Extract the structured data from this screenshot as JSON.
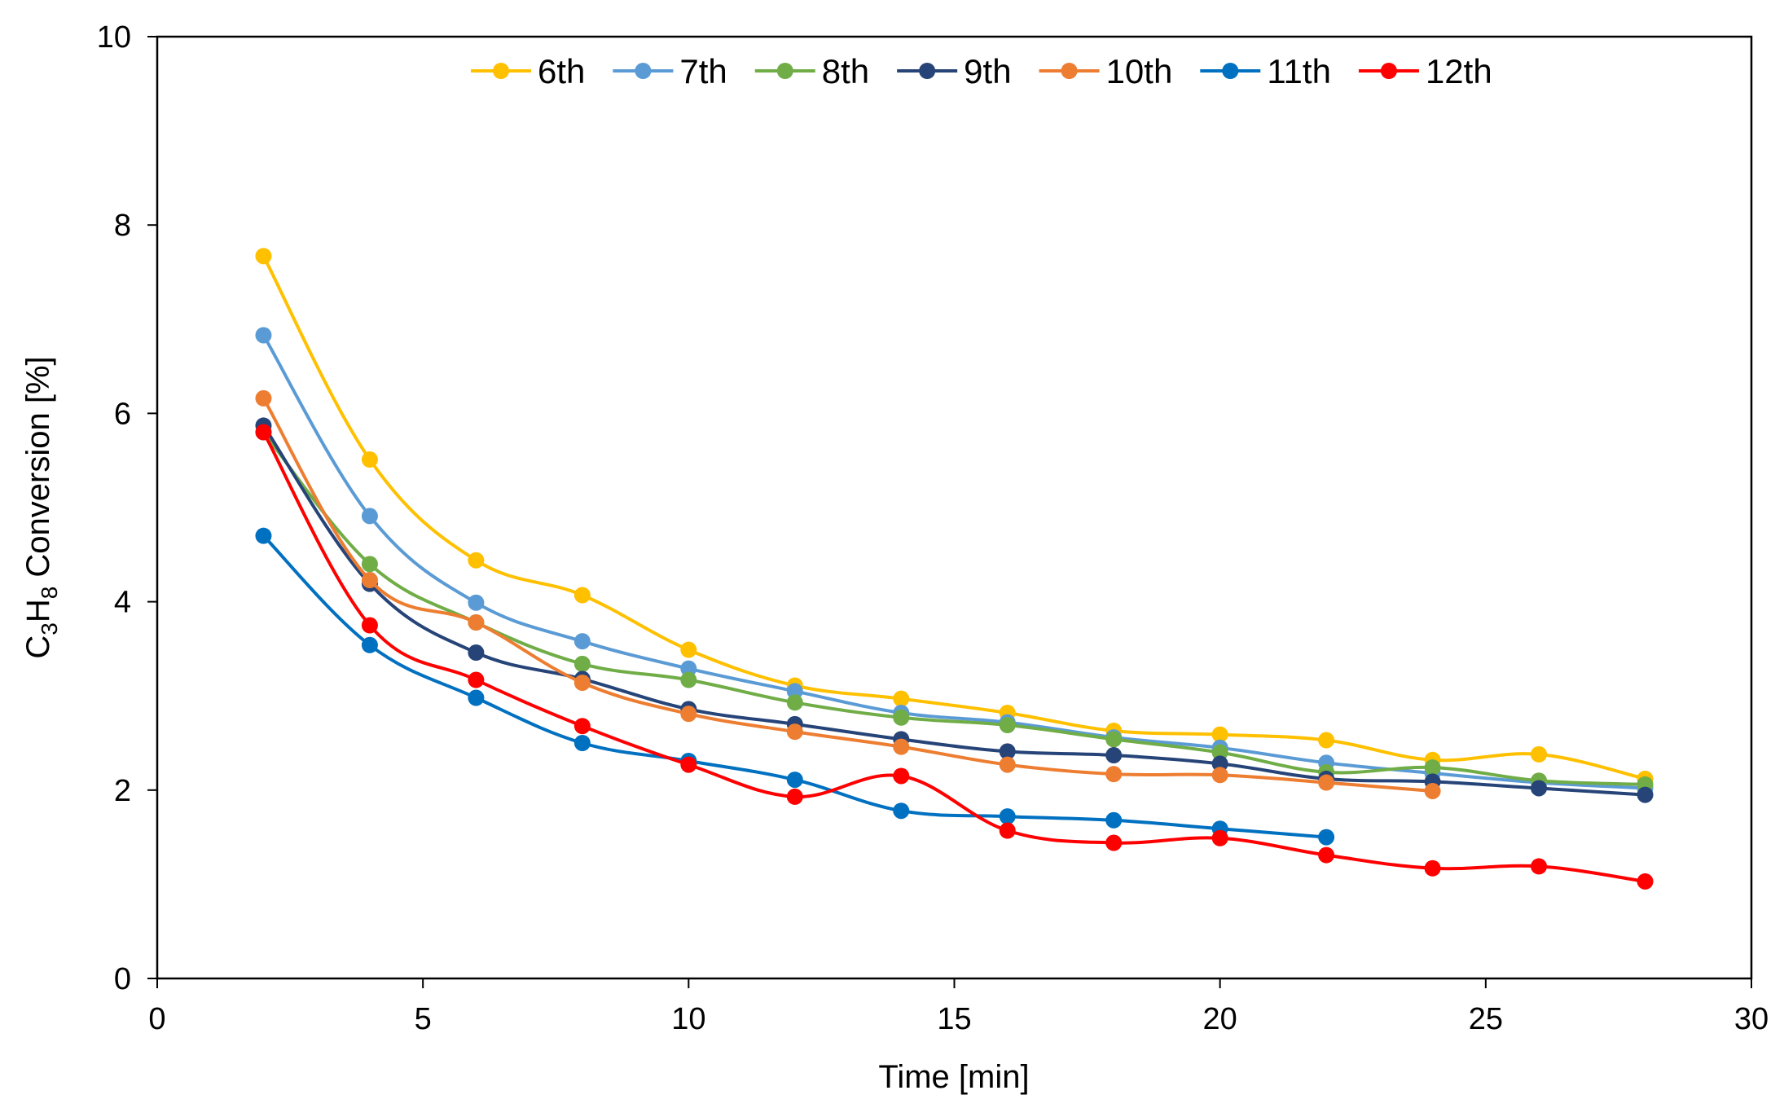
{
  "chart_data": {
    "type": "line",
    "title": "",
    "xlabel": "Time [min]",
    "ylabel_main": "C",
    "ylabel_sub1": "3",
    "ylabel_mid": "H",
    "ylabel_sub2": "8",
    "ylabel_tail": " Conversion [%]",
    "xlim": [
      0,
      30
    ],
    "ylim": [
      0,
      10
    ],
    "xticks": [
      0,
      5,
      10,
      15,
      20,
      25,
      30
    ],
    "yticks": [
      0,
      2,
      4,
      6,
      8,
      10
    ],
    "grid": false,
    "legend_position": "top",
    "series": [
      {
        "name": "6th",
        "color": "#FFC000",
        "x": [
          2,
          4,
          6,
          8,
          10,
          12,
          14,
          16,
          18,
          20,
          22,
          24,
          26,
          28
        ],
        "y": [
          7.67,
          5.51,
          4.44,
          4.07,
          3.49,
          3.11,
          2.97,
          2.82,
          2.63,
          2.59,
          2.53,
          2.32,
          2.38,
          2.12
        ]
      },
      {
        "name": "7th",
        "color": "#5B9BD5",
        "x": [
          2,
          4,
          6,
          8,
          10,
          12,
          14,
          16,
          18,
          20,
          22,
          24,
          26,
          28
        ],
        "y": [
          6.83,
          4.91,
          3.99,
          3.58,
          3.29,
          3.05,
          2.82,
          2.72,
          2.56,
          2.45,
          2.29,
          2.18,
          2.08,
          2.02
        ]
      },
      {
        "name": "8th",
        "color": "#70AD47",
        "x": [
          2,
          4,
          6,
          8,
          10,
          12,
          14,
          16,
          18,
          20,
          22,
          24,
          26,
          28
        ],
        "y": [
          5.8,
          4.4,
          3.78,
          3.34,
          3.17,
          2.93,
          2.77,
          2.69,
          2.54,
          2.4,
          2.19,
          2.24,
          2.1,
          2.06
        ]
      },
      {
        "name": "9th",
        "color": "#264478",
        "x": [
          2,
          4,
          6,
          8,
          10,
          12,
          14,
          16,
          18,
          20,
          22,
          24,
          26,
          28
        ],
        "y": [
          5.87,
          4.19,
          3.46,
          3.18,
          2.86,
          2.7,
          2.54,
          2.41,
          2.37,
          2.28,
          2.12,
          2.09,
          2.02,
          1.95
        ]
      },
      {
        "name": "10th",
        "color": "#ED7D31",
        "x": [
          2,
          4,
          6,
          8,
          10,
          12,
          14,
          16,
          18,
          20,
          22,
          24
        ],
        "y": [
          6.16,
          4.23,
          3.78,
          3.14,
          2.81,
          2.62,
          2.46,
          2.27,
          2.17,
          2.16,
          2.08,
          1.99
        ]
      },
      {
        "name": "11th",
        "color": "#0070C0",
        "x": [
          2,
          4,
          6,
          8,
          10,
          12,
          14,
          16,
          18,
          20,
          22
        ],
        "y": [
          4.7,
          3.54,
          2.98,
          2.5,
          2.31,
          2.11,
          1.78,
          1.72,
          1.68,
          1.59,
          1.5
        ]
      },
      {
        "name": "12th",
        "color": "#FF0000",
        "x": [
          2,
          4,
          6,
          8,
          10,
          12,
          14,
          16,
          18,
          20,
          22,
          24,
          26,
          28
        ],
        "y": [
          5.8,
          3.75,
          3.17,
          2.68,
          2.27,
          1.93,
          2.15,
          1.57,
          1.44,
          1.49,
          1.31,
          1.17,
          1.19,
          1.03
        ]
      }
    ]
  }
}
